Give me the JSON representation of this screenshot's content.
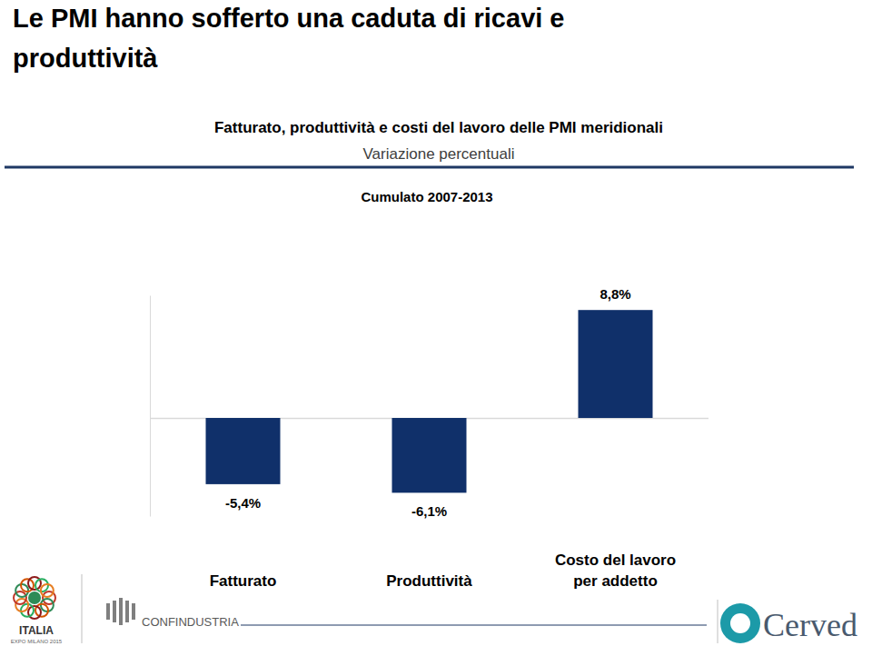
{
  "slide_title": [
    "Le PMI hanno sofferto una caduta di ricavi e",
    "produttività"
  ],
  "chart_data": {
    "type": "bar",
    "title": "Fatturato, produttività e costi del lavoro delle PMI meridionali",
    "subtitle": "Variazione percentuali",
    "annotation": "Cumulato 2007-2013",
    "categories": [
      "Fatturato",
      "Produttività",
      "Costo del lavoro per addetto"
    ],
    "values": [
      -5.4,
      -6.1,
      8.8
    ],
    "value_labels": [
      "-5,4%",
      "-6,1%",
      "8,8%"
    ],
    "color": "#10306a",
    "ylim": [
      -8,
      10
    ],
    "yticks": [
      0
    ],
    "data_labels": true,
    "tick_labels": false
  },
  "logos": [
    "ITALIA",
    "EXPO MILANO 2015",
    "CONFINDUSTRIA",
    "Cerved"
  ]
}
